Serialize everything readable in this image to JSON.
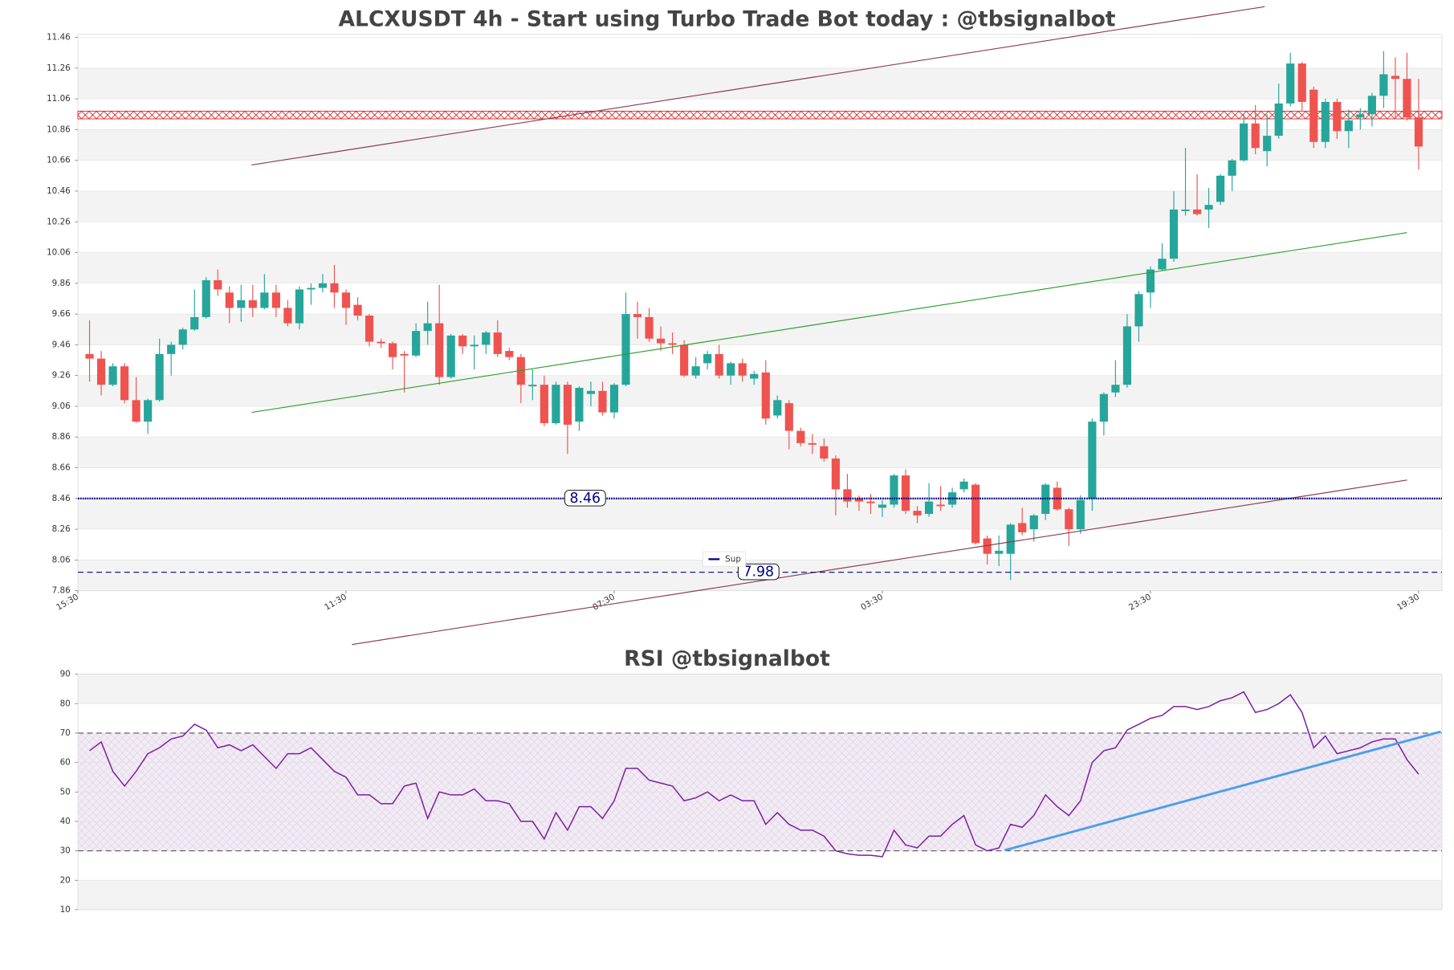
{
  "chart_data": [
    {
      "type": "candlestick",
      "title": "ALCXUSDT 4h - Start using Turbo Trade Bot today : @tbsignalbot",
      "xlim": [
        -1,
        116
      ],
      "xticks": [
        {
          "value": -1,
          "label": "15:30"
        },
        {
          "value": 22,
          "label": "11:30"
        },
        {
          "value": 45,
          "label": "07:30"
        },
        {
          "value": 68,
          "label": "03:30"
        },
        {
          "value": 91,
          "label": "23:30"
        },
        {
          "value": 114,
          "label": "19:30"
        }
      ],
      "ylim": [
        7.86,
        11.48
      ],
      "yticks": [
        7.86,
        8.06,
        8.26,
        8.46,
        8.66,
        8.86,
        9.06,
        9.26,
        9.46,
        9.66,
        9.86,
        10.06,
        10.26,
        10.46,
        10.66,
        10.86,
        11.06,
        11.26,
        11.46
      ],
      "grid": true,
      "up_color": "#26a69a",
      "down_color": "#ef5350",
      "open": [
        9.4,
        9.37,
        9.2,
        9.32,
        9.1,
        8.96,
        9.1,
        9.4,
        9.46,
        9.56,
        9.64,
        9.88,
        9.8,
        9.7,
        9.75,
        9.7,
        9.8,
        9.7,
        9.6,
        9.82,
        9.83,
        9.86,
        9.8,
        9.72,
        9.65,
        9.48,
        9.47,
        9.4,
        9.39,
        9.55,
        9.6,
        9.25,
        9.52,
        9.45,
        9.46,
        9.54,
        9.42,
        9.38,
        9.19,
        9.2,
        8.95,
        9.2,
        8.96,
        9.14,
        9.16,
        9.02,
        9.2,
        9.66,
        9.64,
        9.5,
        9.47,
        9.46,
        9.26,
        9.34,
        9.4,
        9.26,
        9.34,
        9.24,
        9.28,
        9.0,
        9.08,
        8.9,
        8.82,
        8.8,
        8.72,
        8.52,
        8.46,
        8.44,
        8.4,
        8.42,
        8.61,
        8.38,
        8.36,
        8.42,
        8.42,
        8.52,
        8.55,
        8.2,
        8.1,
        8.1,
        8.3,
        8.26,
        8.36,
        8.53,
        8.39,
        8.26,
        8.46,
        8.96,
        9.15,
        9.2,
        9.58,
        9.8,
        9.95,
        10.02,
        10.33,
        10.34,
        10.34,
        10.39,
        10.56,
        10.66,
        10.9,
        10.72,
        10.82,
        11.03,
        11.29,
        11.12,
        10.78,
        11.04,
        10.85,
        10.94,
        10.96,
        11.08,
        11.21,
        11.19,
        10.94
      ],
      "high": [
        9.62,
        9.42,
        9.34,
        9.34,
        9.25,
        9.11,
        9.5,
        9.48,
        9.57,
        9.82,
        9.9,
        9.95,
        9.84,
        9.85,
        9.85,
        9.92,
        9.85,
        9.75,
        9.84,
        9.86,
        9.92,
        9.98,
        9.82,
        9.77,
        9.66,
        9.5,
        9.48,
        9.42,
        9.6,
        9.74,
        9.85,
        9.53,
        9.53,
        9.52,
        9.55,
        9.62,
        9.44,
        9.4,
        9.3,
        9.26,
        9.22,
        9.22,
        9.19,
        9.22,
        9.22,
        9.21,
        9.8,
        9.74,
        9.7,
        9.58,
        9.54,
        9.49,
        9.38,
        9.42,
        9.46,
        9.35,
        9.37,
        9.29,
        9.36,
        9.13,
        9.1,
        8.92,
        8.88,
        8.85,
        8.74,
        8.62,
        8.48,
        8.49,
        8.45,
        8.62,
        8.65,
        8.41,
        8.56,
        8.54,
        8.53,
        8.59,
        8.56,
        8.22,
        8.22,
        8.3,
        8.4,
        8.36,
        8.56,
        8.57,
        8.4,
        8.48,
        8.98,
        9.15,
        9.36,
        9.66,
        9.81,
        9.97,
        10.12,
        10.46,
        10.74,
        10.57,
        10.48,
        10.57,
        10.67,
        10.96,
        11.02,
        10.96,
        11.16,
        11.36,
        11.3,
        11.14,
        11.06,
        11.06,
        10.99,
        11.0,
        11.1,
        11.37,
        11.33,
        11.36,
        11.19
      ],
      "low": [
        9.22,
        9.13,
        9.19,
        9.08,
        8.95,
        8.88,
        9.09,
        9.26,
        9.43,
        9.55,
        9.63,
        9.78,
        9.6,
        9.61,
        9.64,
        9.69,
        9.64,
        9.58,
        9.56,
        9.72,
        9.8,
        9.7,
        9.59,
        9.62,
        9.45,
        9.44,
        9.3,
        9.15,
        9.38,
        9.46,
        9.2,
        9.24,
        9.4,
        9.3,
        9.4,
        9.38,
        9.36,
        9.08,
        9.1,
        8.93,
        8.94,
        8.75,
        8.9,
        9.06,
        9.0,
        8.98,
        9.19,
        9.5,
        9.48,
        9.42,
        9.4,
        9.25,
        9.24,
        9.3,
        9.24,
        9.2,
        9.22,
        9.2,
        8.94,
        8.98,
        8.78,
        8.8,
        8.75,
        8.7,
        8.35,
        8.4,
        8.38,
        8.36,
        8.34,
        8.4,
        8.36,
        8.3,
        8.34,
        8.38,
        8.4,
        8.5,
        8.16,
        8.03,
        8.02,
        7.93,
        8.22,
        8.18,
        8.32,
        8.38,
        8.15,
        8.23,
        8.38,
        8.87,
        9.12,
        9.18,
        9.48,
        9.7,
        9.94,
        10.0,
        10.3,
        10.3,
        10.22,
        10.37,
        10.46,
        10.65,
        10.7,
        10.62,
        10.8,
        11.01,
        10.98,
        10.74,
        10.74,
        10.8,
        10.74,
        10.86,
        10.88,
        11.0,
        10.94,
        10.92,
        10.6
      ],
      "close": [
        9.37,
        9.2,
        9.32,
        9.1,
        8.96,
        9.1,
        9.4,
        9.46,
        9.56,
        9.64,
        9.88,
        9.82,
        9.7,
        9.75,
        9.7,
        9.8,
        9.7,
        9.6,
        9.82,
        9.83,
        9.86,
        9.8,
        9.7,
        9.65,
        9.48,
        9.47,
        9.38,
        9.39,
        9.55,
        9.6,
        9.25,
        9.52,
        9.45,
        9.46,
        9.54,
        9.4,
        9.38,
        9.2,
        9.2,
        8.95,
        9.2,
        8.94,
        9.18,
        9.16,
        9.02,
        9.2,
        9.66,
        9.64,
        9.5,
        9.47,
        9.46,
        9.26,
        9.32,
        9.4,
        9.26,
        9.34,
        9.26,
        9.27,
        8.98,
        9.1,
        8.9,
        8.82,
        8.81,
        8.72,
        8.52,
        8.44,
        8.44,
        8.43,
        8.42,
        8.61,
        8.38,
        8.35,
        8.44,
        8.41,
        8.5,
        8.57,
        8.17,
        8.1,
        8.12,
        8.29,
        8.24,
        8.35,
        8.55,
        8.39,
        8.26,
        8.45,
        8.96,
        9.14,
        9.2,
        9.58,
        9.79,
        9.95,
        10.02,
        10.34,
        10.34,
        10.31,
        10.37,
        10.56,
        10.66,
        10.9,
        10.74,
        10.82,
        11.03,
        11.29,
        11.04,
        10.78,
        11.04,
        10.85,
        10.92,
        10.96,
        11.08,
        11.22,
        11.19,
        10.94,
        10.75
      ],
      "support": {
        "name": "Sup",
        "color": "#00008b",
        "values": [
          8.46,
          7.98
        ]
      },
      "resistance_zone": {
        "values": [
          10.93,
          10.98
        ],
        "color": "#d62728"
      },
      "trendlines": [
        {
          "x": [
            13.9,
            100.8
          ],
          "y": [
            10.63,
            11.66
          ],
          "color": "#8c3a4f"
        },
        {
          "x": [
            13.9,
            113
          ],
          "y": [
            9.02,
            10.19
          ],
          "color": "#2ca02c"
        },
        {
          "x": [
            22.5,
            113
          ],
          "y": [
            7.51,
            8.58
          ],
          "color": "#8c3a4f"
        }
      ]
    },
    {
      "type": "line",
      "title": "RSI @tbsignalbot",
      "color": "#7b1fa2",
      "xlim": [
        -1,
        116
      ],
      "ylim": [
        10,
        90
      ],
      "yticks": [
        10,
        20,
        30,
        40,
        50,
        60,
        70,
        80,
        90
      ],
      "grid": true,
      "levels": [
        70,
        30
      ],
      "values": [
        64,
        67,
        57,
        52,
        57,
        63,
        65,
        68,
        69,
        73,
        71,
        65,
        66,
        64,
        66,
        62,
        58,
        63,
        63,
        65,
        61,
        57,
        55,
        49,
        49,
        46,
        46,
        52,
        53,
        41,
        50,
        49,
        49,
        51,
        47,
        47,
        46,
        40,
        40,
        34,
        43,
        37,
        45,
        45,
        41,
        47,
        58,
        58,
        54,
        53,
        52,
        47,
        48,
        50,
        47,
        49,
        47,
        47,
        39,
        43,
        39,
        37,
        37,
        35,
        30,
        29,
        28.5,
        28.5,
        28,
        37,
        32,
        31,
        35,
        35,
        39,
        42,
        32,
        30,
        31,
        39,
        38,
        42,
        49,
        45,
        42,
        47,
        60,
        64,
        65,
        71,
        73,
        75,
        76,
        79,
        79,
        78,
        79,
        81,
        82,
        84,
        77,
        78,
        80,
        83,
        77,
        65,
        69,
        63,
        64,
        65,
        67,
        68,
        68,
        61,
        56
      ],
      "trendline": {
        "x": [
          78.5,
          115.9
        ],
        "y": [
          30.2,
          70.5
        ],
        "color": "#4a9fe8"
      }
    }
  ]
}
